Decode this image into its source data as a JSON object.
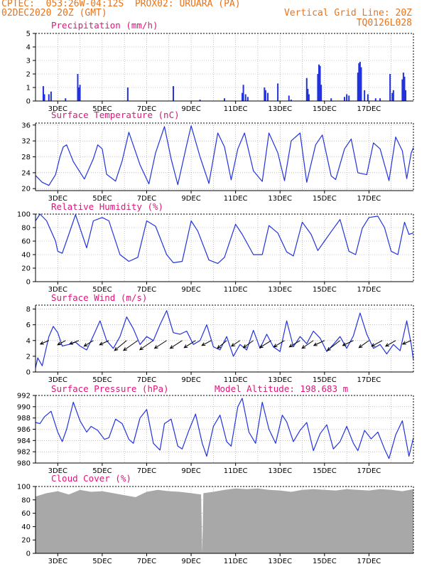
{
  "header": {
    "line1_left": "CPTEC:  053:26W-04:12S  PROX02: URUARA (PA)",
    "line2_left": "02DEC2020 20Z (GMT)",
    "line2_right": "Vertical Grid Line: 20Z",
    "line3_right": "TQ0126L028"
  },
  "colors": {
    "header": "#e8731a",
    "title": "#e0157a",
    "line": "#2233dd",
    "cloud": "#a8a8a8",
    "grid": "#999999"
  },
  "x_ticks": [
    "3DEC",
    "5DEC",
    "7DEC",
    "9DEC",
    "11DEC",
    "13DEC",
    "15DEC",
    "17DEC"
  ],
  "chart_data": [
    {
      "type": "bar",
      "title": "Precipitation (mm/h)",
      "ylim": [
        0,
        5
      ],
      "yticks": [
        "0",
        "1",
        "2",
        "3",
        "4",
        "5"
      ],
      "x_start": "02DEC2020 20Z",
      "bars": [
        {
          "day": 0.35,
          "v": 1.1
        },
        {
          "day": 0.4,
          "v": 0.5
        },
        {
          "day": 0.6,
          "v": 0.5
        },
        {
          "day": 0.7,
          "v": 0.7
        },
        {
          "day": 1.35,
          "v": 0.2
        },
        {
          "day": 1.9,
          "v": 2.0
        },
        {
          "day": 1.95,
          "v": 1.0
        },
        {
          "day": 2.0,
          "v": 1.2
        },
        {
          "day": 4.15,
          "v": 1.0
        },
        {
          "day": 6.2,
          "v": 1.1
        },
        {
          "day": 7.4,
          "v": 0.1
        },
        {
          "day": 8.5,
          "v": 0.2
        },
        {
          "day": 9.3,
          "v": 0.6
        },
        {
          "day": 9.35,
          "v": 1.2
        },
        {
          "day": 9.45,
          "v": 0.5
        },
        {
          "day": 9.55,
          "v": 0.3
        },
        {
          "day": 10.3,
          "v": 1.0
        },
        {
          "day": 10.35,
          "v": 0.8
        },
        {
          "day": 10.45,
          "v": 0.6
        },
        {
          "day": 10.9,
          "v": 1.3
        },
        {
          "day": 11.4,
          "v": 0.4
        },
        {
          "day": 11.5,
          "v": 0.1
        },
        {
          "day": 12.2,
          "v": 1.7
        },
        {
          "day": 12.25,
          "v": 0.9
        },
        {
          "day": 12.3,
          "v": 0.5
        },
        {
          "day": 12.7,
          "v": 2.0
        },
        {
          "day": 12.75,
          "v": 2.7
        },
        {
          "day": 12.8,
          "v": 2.6
        },
        {
          "day": 12.85,
          "v": 1.2
        },
        {
          "day": 13.3,
          "v": 0.2
        },
        {
          "day": 13.9,
          "v": 0.3
        },
        {
          "day": 14.0,
          "v": 0.5
        },
        {
          "day": 14.1,
          "v": 0.4
        },
        {
          "day": 14.5,
          "v": 2.1
        },
        {
          "day": 14.55,
          "v": 2.8
        },
        {
          "day": 14.6,
          "v": 2.9
        },
        {
          "day": 14.65,
          "v": 2.5
        },
        {
          "day": 14.8,
          "v": 0.8
        },
        {
          "day": 14.95,
          "v": 0.5
        },
        {
          "day": 15.3,
          "v": 0.2
        },
        {
          "day": 15.5,
          "v": 0.2
        },
        {
          "day": 15.95,
          "v": 2.0
        },
        {
          "day": 16.05,
          "v": 0.6
        },
        {
          "day": 16.1,
          "v": 0.8
        },
        {
          "day": 16.5,
          "v": 1.6
        },
        {
          "day": 16.55,
          "v": 2.1
        },
        {
          "day": 16.6,
          "v": 1.8
        },
        {
          "day": 16.65,
          "v": 0.8
        }
      ]
    },
    {
      "type": "line",
      "title": "Surface Temperature (nC)",
      "ylim": [
        19.5,
        36.5
      ],
      "yticks": [
        "20",
        "24",
        "28",
        "32",
        "36"
      ],
      "day": [
        0,
        0.3,
        0.6,
        0.9,
        1.1,
        1.25,
        1.4,
        1.7,
        2.2,
        2.6,
        2.8,
        3.0,
        3.2,
        3.6,
        3.9,
        4.2,
        4.7,
        5.1,
        5.4,
        5.8,
        6.1,
        6.4,
        6.8,
        7.0,
        7.4,
        7.8,
        8.2,
        8.5,
        8.8,
        9.1,
        9.4,
        9.8,
        10.2,
        10.5,
        10.9,
        11.2,
        11.5,
        11.9,
        12.2,
        12.6,
        12.9,
        13.3,
        13.5,
        13.9,
        14.2,
        14.5,
        14.9,
        15.2,
        15.5,
        15.9,
        16.2,
        16.5,
        16.7,
        16.9,
        17.0
      ],
      "values": [
        23.3,
        21.6,
        20.8,
        23.5,
        28,
        30.5,
        31,
        26.8,
        22.4,
        27.5,
        31,
        30,
        23.6,
        21.9,
        27,
        34.2,
        26,
        21.2,
        29,
        35.6,
        27.5,
        21,
        31,
        35.8,
        28,
        21.3,
        34,
        30.5,
        22.2,
        30,
        34,
        24.5,
        21.8,
        34,
        29,
        22,
        32,
        34,
        21.6,
        31,
        33.5,
        23.2,
        22.3,
        30,
        32.5,
        24,
        23.5,
        31.5,
        30,
        22,
        33,
        29.5,
        22.5,
        29,
        30.3
      ]
    },
    {
      "type": "line",
      "title": "Relative Humidity (%)",
      "ylim": [
        0,
        100
      ],
      "yticks": [
        "0",
        "20",
        "40",
        "60",
        "80",
        "100"
      ],
      "day": [
        0,
        0.2,
        0.5,
        0.9,
        1.0,
        1.2,
        1.5,
        1.8,
        2.3,
        2.6,
        3.0,
        3.3,
        3.8,
        4.2,
        4.6,
        5.0,
        5.4,
        5.9,
        6.2,
        6.6,
        7.0,
        7.3,
        7.8,
        8.2,
        8.5,
        9.0,
        9.3,
        9.8,
        10.2,
        10.5,
        10.9,
        11.3,
        11.6,
        12.0,
        12.4,
        12.7,
        13.0,
        13.3,
        13.7,
        14.1,
        14.4,
        14.7,
        15.0,
        15.4,
        15.7,
        16.0,
        16.3,
        16.6,
        16.8,
        17.0
      ],
      "values": [
        90,
        100,
        90,
        60,
        45,
        42,
        70,
        99,
        50,
        90,
        95,
        90,
        40,
        30,
        36,
        90,
        82,
        40,
        28,
        30,
        90,
        75,
        32,
        27,
        36,
        85,
        70,
        40,
        40,
        83,
        72,
        44,
        38,
        88,
        70,
        46,
        60,
        74,
        92,
        45,
        40,
        79,
        95,
        97,
        80,
        45,
        40,
        88,
        70,
        72
      ]
    },
    {
      "type": "line",
      "title": "Surface Wind (m/s)",
      "ylim": [
        0,
        8.5
      ],
      "yticks": [
        "0",
        "2",
        "4",
        "6",
        "8"
      ],
      "day": [
        0,
        0.1,
        0.3,
        0.6,
        0.8,
        1.0,
        1.2,
        1.5,
        1.8,
        2.0,
        2.3,
        2.6,
        2.9,
        3.2,
        3.5,
        3.8,
        4.1,
        4.4,
        4.7,
        5.0,
        5.3,
        5.6,
        5.9,
        6.2,
        6.5,
        6.8,
        7.1,
        7.4,
        7.7,
        8.0,
        8.3,
        8.6,
        8.9,
        9.2,
        9.5,
        9.8,
        10.1,
        10.4,
        10.7,
        11.0,
        11.3,
        11.6,
        11.9,
        12.2,
        12.5,
        12.8,
        13.1,
        13.4,
        13.7,
        14.0,
        14.3,
        14.6,
        14.9,
        15.2,
        15.5,
        15.8,
        16.1,
        16.4,
        16.7,
        16.9,
        17.0
      ],
      "values": [
        0.5,
        1.8,
        0.8,
        4.5,
        5.8,
        5.0,
        3.3,
        3.5,
        3.8,
        3.3,
        2.8,
        4.6,
        6.5,
        4.0,
        3.0,
        4.5,
        7.0,
        5.5,
        3.5,
        4.5,
        4.0,
        6.0,
        7.8,
        5.0,
        4.8,
        5.2,
        3.5,
        4.0,
        6.0,
        3.2,
        2.8,
        4.5,
        2.0,
        3.5,
        2.8,
        5.3,
        3.0,
        4.8,
        3.2,
        2.6,
        6.5,
        3.2,
        4.5,
        3.6,
        5.2,
        4.3,
        2.6,
        3.5,
        4.5,
        3.0,
        4.6,
        7.5,
        4.8,
        3.0,
        3.5,
        2.3,
        3.5,
        2.7,
        6.5,
        3.5,
        1.5
      ],
      "arrows": [
        {
          "day": 0.6,
          "dx": -12,
          "dy": 5
        },
        {
          "day": 1.35,
          "dx": -11,
          "dy": 6
        },
        {
          "day": 1.95,
          "dx": -13,
          "dy": 5
        },
        {
          "day": 2.6,
          "dx": -13,
          "dy": 8
        },
        {
          "day": 3.3,
          "dx": -13,
          "dy": 6
        },
        {
          "day": 4.1,
          "dx": -17,
          "dy": 14
        },
        {
          "day": 4.6,
          "dx": -20,
          "dy": 14
        },
        {
          "day": 5.3,
          "dx": -19,
          "dy": 13
        },
        {
          "day": 5.9,
          "dx": -17,
          "dy": 11
        },
        {
          "day": 6.6,
          "dx": -17,
          "dy": 11
        },
        {
          "day": 7.2,
          "dx": -16,
          "dy": 10
        },
        {
          "day": 7.9,
          "dx": -13,
          "dy": 7
        },
        {
          "day": 8.6,
          "dx": -13,
          "dy": 11
        },
        {
          "day": 9.2,
          "dx": -12,
          "dy": 8
        },
        {
          "day": 9.8,
          "dx": -14,
          "dy": 10
        },
        {
          "day": 10.6,
          "dx": -16,
          "dy": 10
        },
        {
          "day": 11.2,
          "dx": -15,
          "dy": 9
        },
        {
          "day": 11.9,
          "dx": -15,
          "dy": 9
        },
        {
          "day": 12.5,
          "dx": -16,
          "dy": 11
        },
        {
          "day": 13.0,
          "dx": -15,
          "dy": 7
        },
        {
          "day": 13.7,
          "dx": -18,
          "dy": 14
        },
        {
          "day": 14.3,
          "dx": -15,
          "dy": 7
        },
        {
          "day": 15.0,
          "dx": -14,
          "dy": 10
        },
        {
          "day": 15.6,
          "dx": -15,
          "dy": 8
        },
        {
          "day": 16.2,
          "dx": -14,
          "dy": 8
        },
        {
          "day": 16.9,
          "dx": -12,
          "dy": 5
        }
      ]
    },
    {
      "type": "line",
      "title": "Surface Pressure (hPa)",
      "subtitle": "Model Altitude: 198.683 m",
      "ylim": [
        980,
        992
      ],
      "yticks": [
        "980",
        "982",
        "984",
        "986",
        "988",
        "990",
        "992"
      ],
      "day": [
        0,
        0.2,
        0.4,
        0.7,
        1.0,
        1.2,
        1.4,
        1.7,
        2.0,
        2.3,
        2.5,
        2.8,
        3.1,
        3.3,
        3.6,
        3.9,
        4.2,
        4.4,
        4.7,
        5.0,
        5.3,
        5.6,
        5.8,
        6.1,
        6.4,
        6.6,
        6.9,
        7.2,
        7.5,
        7.7,
        8.0,
        8.3,
        8.6,
        8.8,
        9.1,
        9.3,
        9.6,
        9.9,
        10.2,
        10.5,
        10.8,
        11.1,
        11.3,
        11.6,
        11.9,
        12.2,
        12.5,
        12.8,
        13.1,
        13.4,
        13.7,
        14.0,
        14.3,
        14.5,
        14.8,
        15.1,
        15.4,
        15.7,
        15.9,
        16.2,
        16.5,
        16.8,
        17.0
      ],
      "values": [
        987.2,
        987,
        988.2,
        989.2,
        985.5,
        983.8,
        986,
        990.8,
        987.5,
        985.5,
        986.5,
        985.8,
        984.2,
        984.5,
        987.8,
        987,
        984.2,
        983.5,
        988,
        989.5,
        983.5,
        982.3,
        987,
        987.8,
        983,
        982.5,
        985.8,
        988.7,
        983.5,
        981.2,
        986.5,
        988.5,
        983.8,
        983,
        990,
        991.5,
        985.5,
        983.5,
        990.8,
        986,
        983.5,
        988.5,
        987.3,
        983.8,
        985.8,
        987.2,
        982.2,
        985.2,
        986.8,
        982.5,
        983.8,
        986.5,
        983.5,
        982.2,
        985.8,
        984.3,
        985.5,
        982.5,
        980.8,
        985,
        987.5,
        981.2,
        984.5
      ]
    },
    {
      "type": "area",
      "title": "Cloud Cover (%)",
      "ylim": [
        0,
        100
      ],
      "yticks": [
        "0",
        "20",
        "40",
        "60",
        "80",
        "100"
      ],
      "day": [
        0,
        0.5,
        1.0,
        1.5,
        2.0,
        2.5,
        3.0,
        3.5,
        4.0,
        4.5,
        5.0,
        5.5,
        6.0,
        6.5,
        7.0,
        7.45,
        7.5,
        7.55,
        8.0,
        8.5,
        9.0,
        9.5,
        10.0,
        10.5,
        11.0,
        11.5,
        12.0,
        12.5,
        13.0,
        13.5,
        14.0,
        14.5,
        15.0,
        15.5,
        16.0,
        16.5,
        17.0
      ],
      "values": [
        85,
        90,
        93,
        88,
        95,
        92,
        93,
        90,
        87,
        84,
        92,
        95,
        93,
        92,
        90,
        88,
        0,
        90,
        92,
        95,
        97,
        96,
        97,
        95,
        94,
        92,
        95,
        96,
        95,
        94,
        96,
        95,
        94,
        96,
        95,
        93,
        96
      ]
    }
  ]
}
